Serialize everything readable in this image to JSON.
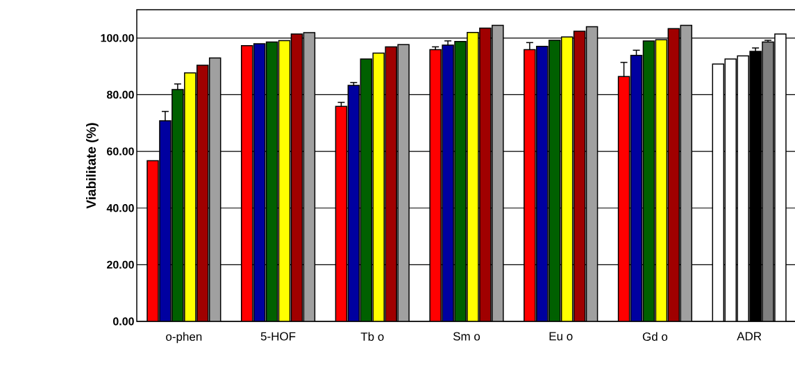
{
  "chart_data": {
    "type": "bar",
    "ylabel": "Viabilitate (%)",
    "categories": [
      "o-phen",
      "5-HOF",
      "Tb o",
      "Sm o",
      "Eu o",
      "Gd o",
      "ADR"
    ],
    "series": [
      {
        "colors": [
          "#ff0000",
          "#ff0000",
          "#ff0000",
          "#ff0000",
          "#ff0000",
          "#ff0000",
          "#ffffff"
        ],
        "values": [
          56.7,
          97.3,
          75.9,
          95.9,
          95.9,
          86.4,
          90.8
        ],
        "errors": [
          null,
          null,
          1.4,
          1.0,
          2.5,
          5.0,
          null
        ]
      },
      {
        "colors": [
          "#0000a0",
          "#0000a0",
          "#0000a0",
          "#0000a0",
          "#0000a0",
          "#0000a0",
          "#ffffff"
        ],
        "values": [
          70.8,
          98.0,
          83.3,
          97.5,
          97.1,
          93.9,
          92.6
        ],
        "errors": [
          3.3,
          null,
          1.0,
          1.5,
          null,
          1.8,
          null
        ]
      },
      {
        "colors": [
          "#006000",
          "#006000",
          "#006000",
          "#006000",
          "#006000",
          "#006000",
          "#ffffff"
        ],
        "values": [
          81.8,
          98.6,
          92.6,
          98.8,
          99.2,
          99.0,
          93.7
        ],
        "errors": [
          2.0,
          null,
          null,
          null,
          null,
          null,
          null
        ]
      },
      {
        "colors": [
          "#ffff00",
          "#ffff00",
          "#ffff00",
          "#ffff00",
          "#ffff00",
          "#ffff00",
          "#000000"
        ],
        "values": [
          87.7,
          99.1,
          94.7,
          102.0,
          100.4,
          99.4,
          95.3
        ],
        "errors": [
          null,
          null,
          null,
          null,
          null,
          null,
          1.2
        ]
      },
      {
        "colors": [
          "#a00000",
          "#a00000",
          "#a00000",
          "#a00000",
          "#a00000",
          "#a00000",
          "#808080"
        ],
        "values": [
          90.4,
          101.4,
          96.9,
          103.5,
          102.4,
          103.3,
          98.6
        ],
        "errors": [
          null,
          null,
          null,
          null,
          null,
          null,
          0.6
        ]
      },
      {
        "colors": [
          "#a0a0a0",
          "#a0a0a0",
          "#a0a0a0",
          "#a0a0a0",
          "#a0a0a0",
          "#a0a0a0",
          "#ffffff"
        ],
        "values": [
          93.0,
          101.9,
          97.7,
          104.5,
          104.0,
          104.5,
          101.4
        ],
        "errors": [
          null,
          null,
          null,
          null,
          null,
          null,
          null
        ]
      }
    ],
    "ylim": [
      0,
      110
    ],
    "yticks": [
      {
        "value": 0,
        "label": "0.00"
      },
      {
        "value": 20,
        "label": "20.00"
      },
      {
        "value": 40,
        "label": "40.00"
      },
      {
        "value": 60,
        "label": "60.00"
      },
      {
        "value": 80,
        "label": "80.00"
      },
      {
        "value": 100,
        "label": "100.00"
      }
    ],
    "grid": "y"
  }
}
